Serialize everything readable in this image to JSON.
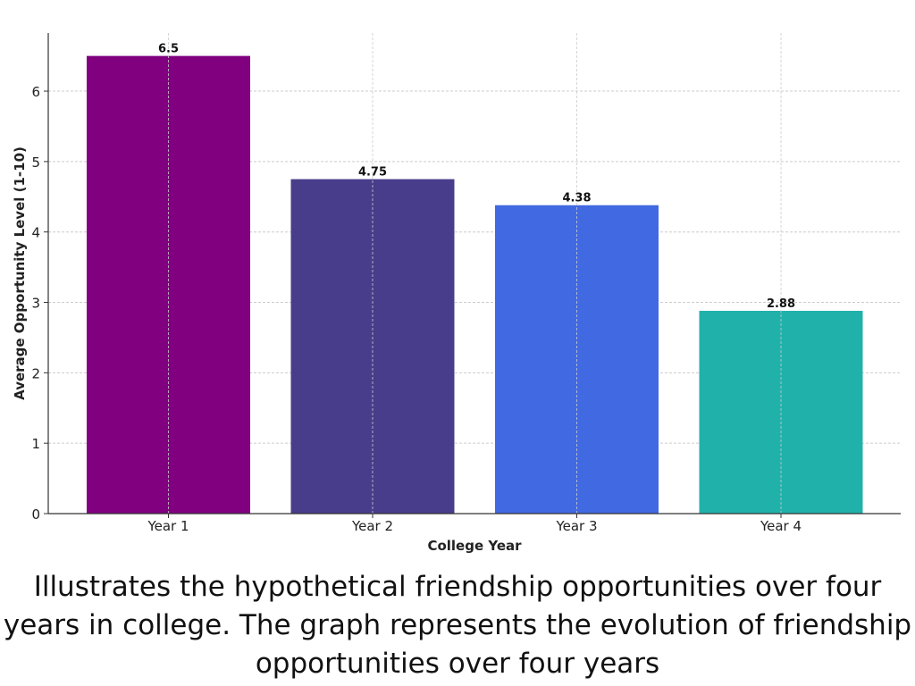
{
  "chart_data": {
    "type": "bar",
    "categories": [
      "Year 1",
      "Year 2",
      "Year 3",
      "Year 4"
    ],
    "values": [
      6.5,
      4.75,
      4.38,
      2.88
    ],
    "data_labels": [
      "6.5",
      "4.75",
      "4.38",
      "2.88"
    ],
    "colors": [
      "#800080",
      "#483D8B",
      "#4169E1",
      "#20B2AA"
    ],
    "title": "",
    "xlabel": "College Year",
    "ylabel": "Average Opportunity Level (1-10)",
    "ylim": [
      0,
      6.825
    ],
    "yticks": [
      0,
      1,
      2,
      3,
      4,
      5,
      6
    ],
    "grid": true
  },
  "caption": "Illustrates the hypothetical friendship opportunities over four years in college. The graph represents the evolution of friendship opportunities over four years"
}
